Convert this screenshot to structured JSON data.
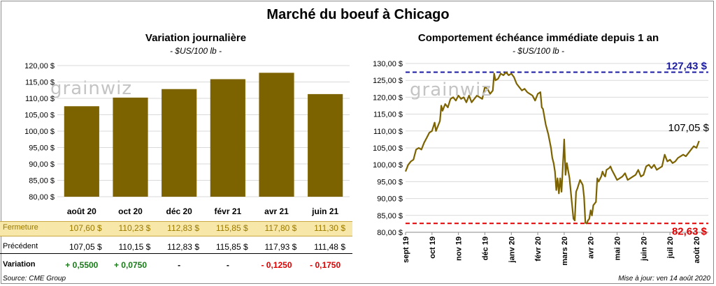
{
  "title": "Marché du boeuf à Chicago",
  "left_panel": {
    "title": "Variation journalière",
    "unit": "- $US/100 lb -",
    "watermark": "grainwiz",
    "table": {
      "rows": [
        {
          "label": "Fermeture",
          "values": [
            "107,60  $",
            "110,23  $",
            "112,83  $",
            "115,85  $",
            "117,80  $",
            "111,30  $"
          ]
        },
        {
          "label": "Précédent",
          "values": [
            "107,05  $",
            "110,15  $",
            "112,83  $",
            "115,85  $",
            "117,93  $",
            "111,48  $"
          ]
        },
        {
          "label": "Variation",
          "values": [
            "+ 0,5500",
            "+ 0,0750",
            "-",
            "-",
            "- 0,1250",
            "- 0,1750"
          ]
        }
      ],
      "variation_colors": [
        "#1a7a1a",
        "#1a7a1a",
        "#000000",
        "#000000",
        "#e00000",
        "#e00000"
      ]
    }
  },
  "right_panel": {
    "title": "Comportement  échéance immédiate depuis 1 an",
    "unit": "- $US/100 lb -",
    "watermark": "grainwiz",
    "high_label": "127,43 $",
    "low_label": "82,63 $",
    "last_label": "107,05 $"
  },
  "source": "Source: CME Group",
  "updated": "Mise à jour: ven 14 août 2020",
  "chart_data": [
    {
      "type": "bar",
      "categories": [
        "août 20",
        "oct 20",
        "déc 20",
        "févr 21",
        "avr 21",
        "juin 21"
      ],
      "values": [
        107.6,
        110.23,
        112.83,
        115.85,
        117.8,
        111.3
      ],
      "ylim": [
        80,
        120
      ],
      "yticks": [
        "80,00 $",
        "85,00 $",
        "90,00 $",
        "95,00 $",
        "100,00 $",
        "105,00 $",
        "110,00 $",
        "115,00 $",
        "120,00 $"
      ],
      "color": "#7d6300",
      "grid": true
    },
    {
      "type": "line",
      "ylim": [
        80,
        130
      ],
      "yticks": [
        "80,00 $",
        "85,00 $",
        "90,00 $",
        "95,00 $",
        "100,00 $",
        "105,00 $",
        "110,00 $",
        "115,00 $",
        "120,00 $",
        "125,00 $",
        "130,00 $"
      ],
      "xticks": [
        "sept 19",
        "oct 19",
        "nov 19",
        "déc 19",
        "janv 20",
        "févr 20",
        "mars 20",
        "avr 20",
        "mai 20",
        "juin 20",
        "juil 20",
        "août 20"
      ],
      "x_range_months": [
        0,
        11.45
      ],
      "series": [
        {
          "color": "#7d6300",
          "points": [
            [
              0,
              98.0
            ],
            [
              0.1,
              100.0
            ],
            [
              0.2,
              101.0
            ],
            [
              0.3,
              101.5
            ],
            [
              0.4,
              104.5
            ],
            [
              0.5,
              105.0
            ],
            [
              0.6,
              104.5
            ],
            [
              0.7,
              106.5
            ],
            [
              0.8,
              108.0
            ],
            [
              0.9,
              109.5
            ],
            [
              1.0,
              110.0
            ],
            [
              1.1,
              112.5
            ],
            [
              1.15,
              110.0
            ],
            [
              1.2,
              111.0
            ],
            [
              1.3,
              113.0
            ],
            [
              1.35,
              117.5
            ],
            [
              1.4,
              116.0
            ],
            [
              1.5,
              118.0
            ],
            [
              1.6,
              117.0
            ],
            [
              1.7,
              119.5
            ],
            [
              1.8,
              120.0
            ],
            [
              1.9,
              119.0
            ],
            [
              2.0,
              120.5
            ],
            [
              2.1,
              119.5
            ],
            [
              2.2,
              120.0
            ],
            [
              2.3,
              118.5
            ],
            [
              2.4,
              120.5
            ],
            [
              2.5,
              118.5
            ],
            [
              2.6,
              119.5
            ],
            [
              2.7,
              120.5
            ],
            [
              2.8,
              120.0
            ],
            [
              2.9,
              119.5
            ],
            [
              3.0,
              123.0
            ],
            [
              3.1,
              122.5
            ],
            [
              3.2,
              121.0
            ],
            [
              3.3,
              122.0
            ],
            [
              3.35,
              127.0
            ],
            [
              3.4,
              125.0
            ],
            [
              3.5,
              125.5
            ],
            [
              3.6,
              127.0
            ],
            [
              3.7,
              126.5
            ],
            [
              3.8,
              127.4
            ],
            [
              3.9,
              126.5
            ],
            [
              4.0,
              127.0
            ],
            [
              4.1,
              126.0
            ],
            [
              4.2,
              124.0
            ],
            [
              4.3,
              123.0
            ],
            [
              4.4,
              122.0
            ],
            [
              4.5,
              122.5
            ],
            [
              4.6,
              121.5
            ],
            [
              4.7,
              121.0
            ],
            [
              4.8,
              120.5
            ],
            [
              4.9,
              119.0
            ],
            [
              5.0,
              121.0
            ],
            [
              5.1,
              121.5
            ],
            [
              5.15,
              117.0
            ],
            [
              5.2,
              116.5
            ],
            [
              5.3,
              112.0
            ],
            [
              5.4,
              109.0
            ],
            [
              5.5,
              105.0
            ],
            [
              5.55,
              102.0
            ],
            [
              5.6,
              100.5
            ],
            [
              5.65,
              98.0
            ],
            [
              5.7,
              92.5
            ],
            [
              5.75,
              96.0
            ],
            [
              5.8,
              91.5
            ],
            [
              5.85,
              96.0
            ],
            [
              5.9,
              92.0
            ],
            [
              6.0,
              107.5
            ],
            [
              6.05,
              97.0
            ],
            [
              6.1,
              100.5
            ],
            [
              6.2,
              96.0
            ],
            [
              6.3,
              88.0
            ],
            [
              6.35,
              84.0
            ],
            [
              6.4,
              83.5
            ],
            [
              6.45,
              92.0
            ],
            [
              6.5,
              93.0
            ],
            [
              6.6,
              95.5
            ],
            [
              6.7,
              94.0
            ],
            [
              6.75,
              90.5
            ],
            [
              6.8,
              82.8
            ],
            [
              6.85,
              82.6
            ],
            [
              6.9,
              83.5
            ],
            [
              6.95,
              84.0
            ],
            [
              7.0,
              86.5
            ],
            [
              7.05,
              85.0
            ],
            [
              7.1,
              88.0
            ],
            [
              7.2,
              89.0
            ],
            [
              7.25,
              96.0
            ],
            [
              7.3,
              95.0
            ],
            [
              7.4,
              96.5
            ],
            [
              7.45,
              98.0
            ],
            [
              7.5,
              97.0
            ],
            [
              7.55,
              96.5
            ],
            [
              7.6,
              98.5
            ],
            [
              7.7,
              99.0
            ],
            [
              7.75,
              99.5
            ],
            [
              7.8,
              98.5
            ],
            [
              7.9,
              97.0
            ],
            [
              8.0,
              95.5
            ],
            [
              8.1,
              96.0
            ],
            [
              8.2,
              96.5
            ],
            [
              8.3,
              97.5
            ],
            [
              8.4,
              95.5
            ],
            [
              8.5,
              96.0
            ],
            [
              8.6,
              96.5
            ],
            [
              8.7,
              97.0
            ],
            [
              8.8,
              98.5
            ],
            [
              8.9,
              96.5
            ],
            [
              9.0,
              97.0
            ],
            [
              9.1,
              99.5
            ],
            [
              9.2,
              100.0
            ],
            [
              9.3,
              99.0
            ],
            [
              9.4,
              100.0
            ],
            [
              9.5,
              98.5
            ],
            [
              9.6,
              99.0
            ],
            [
              9.7,
              99.5
            ],
            [
              9.8,
              103.0
            ],
            [
              9.9,
              101.0
            ],
            [
              10.0,
              101.5
            ],
            [
              10.1,
              100.5
            ],
            [
              10.2,
              101.0
            ],
            [
              10.3,
              102.0
            ],
            [
              10.4,
              102.5
            ],
            [
              10.5,
              103.0
            ],
            [
              10.6,
              102.5
            ],
            [
              10.7,
              103.5
            ],
            [
              10.8,
              104.5
            ],
            [
              10.9,
              105.5
            ],
            [
              11.0,
              105.0
            ],
            [
              11.1,
              107.05
            ]
          ]
        }
      ],
      "h_lines": [
        {
          "value": 127.43,
          "color": "#1a1aa0",
          "style": "dashed"
        },
        {
          "value": 82.63,
          "color": "#e00000",
          "style": "dashed"
        }
      ],
      "grid": true
    }
  ]
}
